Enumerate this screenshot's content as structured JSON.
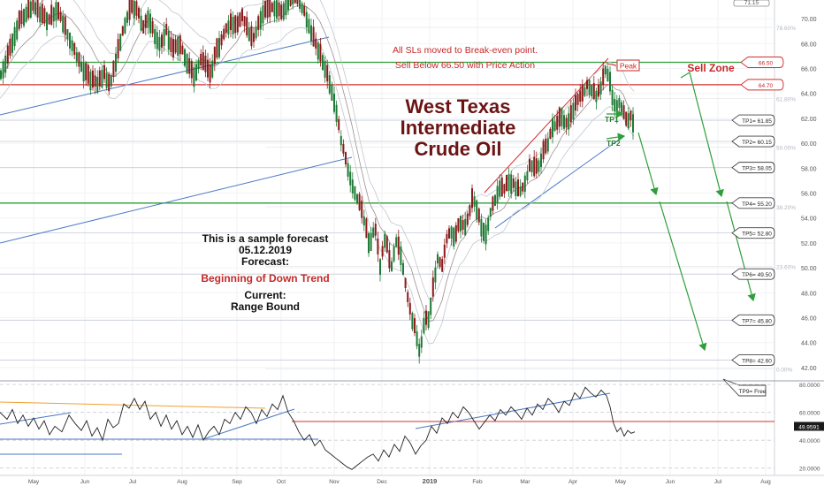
{
  "chart_data": {
    "type": "candlestick",
    "title": "West Texas Intermediate Crude Oil",
    "title_lines": [
      "West Texas",
      "Intermediate",
      "Crude Oil"
    ],
    "price_ylim": [
      41.0,
      71.5
    ],
    "price_ticks": [
      42,
      44,
      46,
      48,
      50,
      52,
      54,
      56,
      58,
      60,
      62,
      64,
      66,
      68,
      70
    ],
    "top_right_label": "71.15",
    "months": [
      "May",
      "Jun",
      "Jul",
      "Aug",
      "Sep",
      "Oct",
      "Nov",
      "Dec",
      "2019",
      "Feb",
      "Mar",
      "Apr",
      "May",
      "Jun",
      "Jul",
      "Aug"
    ],
    "price_path": [
      [
        0,
        65.4
      ],
      [
        8,
        66.8
      ],
      [
        15,
        68.4
      ],
      [
        22,
        69.8
      ],
      [
        30,
        70.5
      ],
      [
        38,
        71.1
      ],
      [
        46,
        70.4
      ],
      [
        55,
        69.8
      ],
      [
        64,
        70.8
      ],
      [
        72,
        69.6
      ],
      [
        80,
        68.2
      ],
      [
        88,
        66.8
      ],
      [
        95,
        65.8
      ],
      [
        103,
        65.1
      ],
      [
        110,
        64.8
      ],
      [
        118,
        65.6
      ],
      [
        124,
        64.6
      ],
      [
        130,
        66.3
      ],
      [
        137,
        68.5
      ],
      [
        144,
        70.2
      ],
      [
        150,
        71.0
      ],
      [
        156,
        70.6
      ],
      [
        162,
        69.2
      ],
      [
        168,
        70.2
      ],
      [
        175,
        68.7
      ],
      [
        182,
        67.9
      ],
      [
        188,
        69.1
      ],
      [
        195,
        67.4
      ],
      [
        202,
        68.0
      ],
      [
        208,
        67.2
      ],
      [
        214,
        66.1
      ],
      [
        220,
        65.4
      ],
      [
        226,
        66.7
      ],
      [
        232,
        66.3
      ],
      [
        238,
        65.4
      ],
      [
        244,
        67.3
      ],
      [
        250,
        68.1
      ],
      [
        256,
        69.2
      ],
      [
        262,
        69.7
      ],
      [
        268,
        69.3
      ],
      [
        274,
        70.2
      ],
      [
        280,
        69.1
      ],
      [
        286,
        68.2
      ],
      [
        292,
        69.5
      ],
      [
        298,
        70.6
      ],
      [
        305,
        70.7
      ],
      [
        312,
        71.0
      ],
      [
        318,
        70.4
      ],
      [
        324,
        71.1
      ],
      [
        332,
        71.8
      ],
      [
        338,
        71.4
      ],
      [
        344,
        70.6
      ],
      [
        350,
        69.4
      ],
      [
        356,
        68.1
      ],
      [
        362,
        67.2
      ],
      [
        368,
        66.0
      ],
      [
        374,
        64.6
      ],
      [
        380,
        62.8
      ],
      [
        386,
        60.2
      ],
      [
        392,
        58.4
      ],
      [
        398,
        56.8
      ],
      [
        403,
        55.8
      ],
      [
        408,
        54.9
      ],
      [
        413,
        53.5
      ],
      [
        418,
        51.8
      ],
      [
        424,
        53.4
      ],
      [
        430,
        50.2
      ],
      [
        436,
        52.6
      ],
      [
        442,
        49.8
      ],
      [
        448,
        52.2
      ],
      [
        454,
        51.0
      ],
      [
        460,
        48.0
      ],
      [
        465,
        46.2
      ],
      [
        470,
        45.0
      ],
      [
        475,
        43.2
      ],
      [
        480,
        45.8
      ],
      [
        485,
        46.0
      ],
      [
        490,
        48.4
      ],
      [
        495,
        50.8
      ],
      [
        500,
        50.0
      ],
      [
        505,
        52.2
      ],
      [
        510,
        53.0
      ],
      [
        515,
        52.4
      ],
      [
        520,
        53.8
      ],
      [
        525,
        53.2
      ],
      [
        530,
        54.0
      ],
      [
        535,
        55.8
      ],
      [
        540,
        54.6
      ],
      [
        545,
        53.2
      ],
      [
        550,
        52.8
      ],
      [
        555,
        54.6
      ],
      [
        560,
        55.5
      ],
      [
        565,
        56.5
      ],
      [
        570,
        56.2
      ],
      [
        575,
        57.0
      ],
      [
        580,
        56.8
      ],
      [
        585,
        56.3
      ],
      [
        590,
        56.2
      ],
      [
        595,
        57.1
      ],
      [
        600,
        58.4
      ],
      [
        605,
        57.9
      ],
      [
        610,
        58.3
      ],
      [
        615,
        59.4
      ],
      [
        620,
        60.0
      ],
      [
        625,
        61.4
      ],
      [
        630,
        61.5
      ],
      [
        635,
        62.3
      ],
      [
        640,
        61.5
      ],
      [
        645,
        62.1
      ],
      [
        650,
        63.0
      ],
      [
        655,
        63.6
      ],
      [
        660,
        64.0
      ],
      [
        665,
        64.8
      ],
      [
        670,
        64.2
      ],
      [
        675,
        63.8
      ],
      [
        680,
        64.6
      ],
      [
        685,
        66.0
      ],
      [
        690,
        65.1
      ],
      [
        693,
        63.6
      ],
      [
        697,
        62.8
      ],
      [
        701,
        63.4
      ],
      [
        705,
        62.5
      ],
      [
        709,
        61.7
      ],
      [
        713,
        62.2
      ],
      [
        717,
        61.6
      ]
    ],
    "levels": [
      {
        "name": "TP1",
        "value": 61.85,
        "label": "TP1= 61.85"
      },
      {
        "name": "TP2",
        "value": 60.15,
        "label": "TP2= 60.15"
      },
      {
        "name": "TP3",
        "value": 58.05,
        "label": "TP3= 58.05"
      },
      {
        "name": "TP4",
        "value": 55.2,
        "label": "TP4= 55.20"
      },
      {
        "name": "TP5",
        "value": 52.8,
        "label": "TP5= 52.80"
      },
      {
        "name": "TP6",
        "value": 49.5,
        "label": "TP6= 49.50"
      },
      {
        "name": "TP7",
        "value": 45.8,
        "label": "TP7= 45.80"
      },
      {
        "name": "TP8",
        "value": 42.6,
        "label": "TP8= 42.60"
      },
      {
        "name": "TP9",
        "value": 41.0,
        "label": "TP9= Free"
      }
    ],
    "resistance_levels": [
      {
        "value": 66.5,
        "label": "66.50",
        "color": "#d32f2f"
      },
      {
        "value": 64.7,
        "label": "64.70",
        "color": "#d32f2f"
      }
    ],
    "green_levels": [
      66.5,
      55.2
    ],
    "fib_levels": [
      {
        "value": 69.3,
        "label": "78.60%"
      },
      {
        "value": 63.6,
        "label": "61.80%"
      },
      {
        "value": 59.7,
        "label": "50.00%"
      },
      {
        "value": 54.9,
        "label": "38.20%"
      },
      {
        "value": 50.1,
        "label": "23.60%"
      },
      {
        "value": 41.9,
        "label": "0.00%"
      }
    ],
    "annotations": {
      "sls_note": "All SLs moved to Break-even point.",
      "sell_note": "Sell Below 66.50 with Price Action",
      "peak": "Peak",
      "sell_zone": "Sell Zone",
      "tp1": "TP1",
      "tp2": "TP2",
      "forecast_lines": [
        "This is a sample forecast",
        "05.12.2019",
        "Forecast:"
      ],
      "trend": "Beginning of Down Trend",
      "current_lines": [
        "Current:",
        "Range Bound"
      ]
    },
    "oscillator": {
      "ylim": [
        16,
        82
      ],
      "ticks": [
        {
          "value": 80,
          "label": "80.0000"
        },
        {
          "value": 60,
          "label": "60.0000"
        },
        {
          "value": 40,
          "label": "40.0000"
        },
        {
          "value": 20,
          "label": "20.0000"
        }
      ],
      "current_value": 49.9591,
      "current_label": "49.9591",
      "path": [
        [
          0,
          60
        ],
        [
          8,
          55
        ],
        [
          14,
          62
        ],
        [
          20,
          52
        ],
        [
          26,
          58
        ],
        [
          32,
          50
        ],
        [
          38,
          56
        ],
        [
          44,
          48
        ],
        [
          50,
          54
        ],
        [
          56,
          44
        ],
        [
          62,
          50
        ],
        [
          70,
          46
        ],
        [
          78,
          58
        ],
        [
          85,
          52
        ],
        [
          92,
          47
        ],
        [
          98,
          54
        ],
        [
          104,
          43
        ],
        [
          110,
          49
        ],
        [
          116,
          40
        ],
        [
          122,
          55
        ],
        [
          128,
          49
        ],
        [
          134,
          52
        ],
        [
          140,
          66
        ],
        [
          146,
          63
        ],
        [
          152,
          70
        ],
        [
          158,
          62
        ],
        [
          164,
          68
        ],
        [
          170,
          55
        ],
        [
          176,
          60
        ],
        [
          182,
          50
        ],
        [
          188,
          58
        ],
        [
          194,
          48
        ],
        [
          200,
          54
        ],
        [
          206,
          44
        ],
        [
          212,
          50
        ],
        [
          218,
          42
        ],
        [
          224,
          51
        ],
        [
          230,
          40
        ],
        [
          236,
          46
        ],
        [
          242,
          50
        ],
        [
          248,
          44
        ],
        [
          254,
          55
        ],
        [
          260,
          52
        ],
        [
          266,
          60
        ],
        [
          272,
          55
        ],
        [
          278,
          64
        ],
        [
          284,
          60
        ],
        [
          290,
          52
        ],
        [
          296,
          62
        ],
        [
          302,
          57
        ],
        [
          308,
          66
        ],
        [
          314,
          62
        ],
        [
          320,
          72
        ],
        [
          326,
          60
        ],
        [
          332,
          54
        ],
        [
          338,
          46
        ],
        [
          344,
          40
        ],
        [
          350,
          44
        ],
        [
          356,
          36
        ],
        [
          362,
          40
        ],
        [
          368,
          33
        ],
        [
          374,
          30
        ],
        [
          380,
          27
        ],
        [
          386,
          24
        ],
        [
          392,
          21
        ],
        [
          398,
          19
        ],
        [
          404,
          22
        ],
        [
          410,
          25
        ],
        [
          416,
          28
        ],
        [
          422,
          30
        ],
        [
          428,
          25
        ],
        [
          434,
          33
        ],
        [
          440,
          28
        ],
        [
          446,
          37
        ],
        [
          452,
          32
        ],
        [
          458,
          43
        ],
        [
          464,
          38
        ],
        [
          470,
          30
        ],
        [
          476,
          36
        ],
        [
          482,
          40
        ],
        [
          488,
          50
        ],
        [
          494,
          45
        ],
        [
          500,
          56
        ],
        [
          506,
          52
        ],
        [
          512,
          60
        ],
        [
          518,
          56
        ],
        [
          524,
          64
        ],
        [
          530,
          60
        ],
        [
          536,
          54
        ],
        [
          542,
          48
        ],
        [
          548,
          53
        ],
        [
          554,
          58
        ],
        [
          560,
          54
        ],
        [
          566,
          62
        ],
        [
          572,
          58
        ],
        [
          578,
          64
        ],
        [
          584,
          60
        ],
        [
          590,
          55
        ],
        [
          596,
          63
        ],
        [
          602,
          58
        ],
        [
          608,
          66
        ],
        [
          614,
          62
        ],
        [
          620,
          70
        ],
        [
          626,
          66
        ],
        [
          632,
          60
        ],
        [
          638,
          68
        ],
        [
          644,
          65
        ],
        [
          650,
          74
        ],
        [
          656,
          70
        ],
        [
          662,
          78
        ],
        [
          668,
          74
        ],
        [
          674,
          71
        ],
        [
          680,
          76
        ],
        [
          686,
          72
        ],
        [
          690,
          64
        ],
        [
          694,
          52
        ],
        [
          698,
          46
        ],
        [
          702,
          49
        ],
        [
          706,
          43
        ],
        [
          710,
          47
        ],
        [
          714,
          45
        ],
        [
          718,
          46
        ]
      ]
    }
  }
}
